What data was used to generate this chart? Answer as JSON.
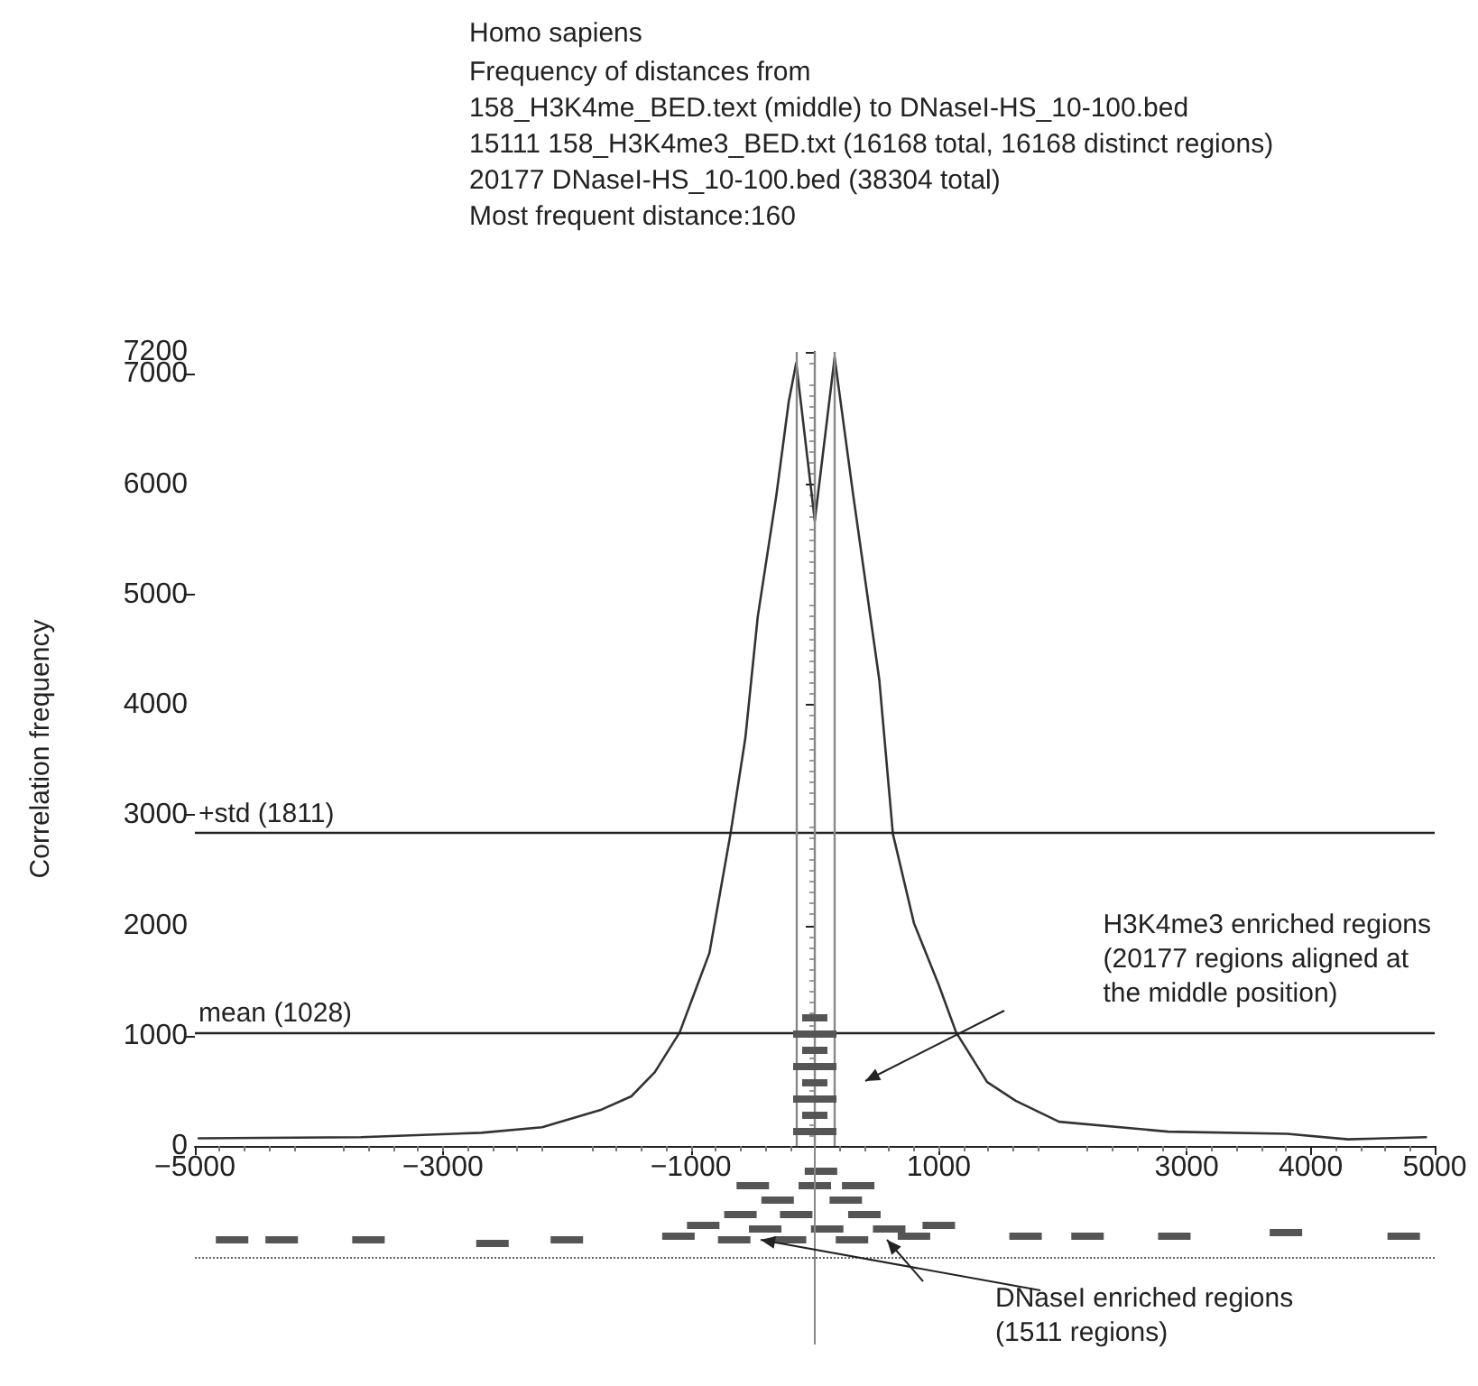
{
  "chart_data": {
    "type": "line",
    "title": "Homo sapiens",
    "subtitle": "Frequency of distances from\n158_H3K4me_BED.text (middle) to DNaseI-HS_10-100.bed\n15111 158_H3K4me3_BED.txt (16168 total, 16168 distinct regions)\n20177 DNaseI-HS_10-100.bed (38304 total)\nMost frequent distance:160",
    "ylabel": "Correlation frequency",
    "series": [
      {
        "color": "#333333",
        "x": [
          -4970,
          -3660,
          -2690,
          -2200,
          -1720,
          -1480,
          -1290,
          -1090,
          -850,
          -680,
          -560,
          -460,
          -310,
          -210,
          -150,
          0,
          160,
          310,
          520,
          630,
          800,
          1000,
          1140,
          1390,
          1620,
          1970,
          2850,
          3810,
          4300,
          4930
        ],
        "values": [
          70,
          80,
          120,
          170,
          330,
          450,
          670,
          1030,
          1750,
          2830,
          3700,
          4800,
          5900,
          6750,
          7100,
          5670,
          7150,
          5900,
          4230,
          2830,
          2020,
          1460,
          1030,
          580,
          410,
          220,
          130,
          110,
          60,
          80
        ]
      }
    ],
    "xlim": [
      -5000,
      5000
    ],
    "xticks": [
      -5000,
      -3000,
      -1000,
      1000,
      3000,
      4000,
      5000
    ],
    "ylim": [
      0,
      7200
    ],
    "yticks": [
      0,
      1000,
      2000,
      3000,
      4000,
      5000,
      6000,
      7000,
      7200
    ],
    "marker": "none",
    "line_style": "solid",
    "grid": false,
    "ref_lines": [
      {
        "axis": "y",
        "value": 2839,
        "label": "+std (1811)",
        "color": "#222222"
      },
      {
        "axis": "y",
        "value": 1028,
        "label": "mean (1028)",
        "color": "#222222"
      },
      {
        "axis": "x",
        "value": -150,
        "label": null,
        "color": "#888888"
      },
      {
        "axis": "x",
        "value": 0,
        "label": null,
        "color": "#888888"
      },
      {
        "axis": "x",
        "value": 160,
        "label": null,
        "color": "#888888"
      }
    ],
    "annotations": [
      "H3K4me3 enriched regions\n(20177 regions aligned at\nthe middle position)",
      "DNaseI enriched regions\n(1511 regions)"
    ]
  }
}
